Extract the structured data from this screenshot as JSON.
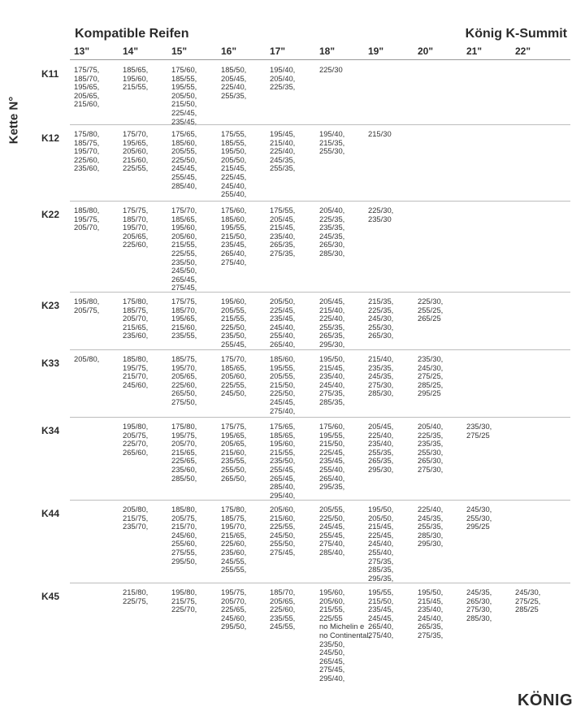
{
  "header": {
    "title_left": "Kompatible Reifen",
    "title_right": "König K-Summit",
    "vertical_label": "Kette N°"
  },
  "columns": [
    "13\"",
    "14\"",
    "15\"",
    "16\"",
    "17\"",
    "18\"",
    "19\"",
    "20\"",
    "21\"",
    "22\""
  ],
  "rows": [
    {
      "label": "K11",
      "cells": [
        "175/75,\n185/70,\n195/65,\n205/65,\n215/60,",
        "185/65,\n195/60,\n215/55,",
        "175/60,\n185/55,\n195/55,\n205/50,\n215/50,\n225/45,\n235/45,",
        "185/50,\n205/45,\n225/40,\n255/35,",
        "195/40,\n205/40,\n225/35,",
        "225/30",
        "",
        "",
        "",
        ""
      ]
    },
    {
      "label": "K12",
      "cells": [
        "175/80,\n185/75,\n195/70,\n225/60,\n235/60,",
        "175/70,\n195/65,\n205/60,\n215/60,\n225/55,",
        "175/65,\n185/60,\n205/55,\n225/50,\n245/45,\n255/45,\n285/40,",
        "175/55,\n185/55,\n195/50,\n205/50,\n215/45,\n225/45,\n245/40,\n255/40,",
        "195/45,\n215/40,\n225/40,\n245/35,\n255/35,",
        "195/40,\n215/35,\n255/30,",
        "215/30",
        "",
        "",
        ""
      ]
    },
    {
      "label": "K22",
      "cells": [
        "185/80,\n195/75,\n205/70,",
        "175/75,\n185/70,\n195/70,\n205/65,\n225/60,",
        "175/70,\n185/65,\n195/60,\n205/60,\n215/55,\n225/55,\n235/50,\n245/50,\n265/45,\n275/45,",
        "175/60,\n185/60,\n195/55,\n215/50,\n235/45,\n265/40,\n275/40,",
        "175/55,\n205/45,\n215/45,\n235/40,\n265/35,\n275/35,",
        "205/40,\n225/35,\n235/35,\n245/35,\n265/30,\n285/30,",
        "225/30,\n235/30",
        "",
        "",
        ""
      ]
    },
    {
      "label": "K23",
      "cells": [
        "195/80,\n205/75,",
        "175/80,\n185/75,\n205/70,\n215/65,\n235/60,",
        "175/75,\n185/70,\n195/65,\n215/60,\n235/55,",
        "195/60,\n205/55,\n215/55,\n225/50,\n235/50,\n255/45,",
        "205/50,\n225/45,\n235/45,\n245/40,\n255/40,\n265/40,",
        "205/45,\n215/40,\n225/40,\n255/35,\n265/35,\n295/30,",
        "215/35,\n225/35,\n245/30,\n255/30,\n265/30,",
        "225/30,\n255/25,\n265/25",
        "",
        ""
      ]
    },
    {
      "label": "K33",
      "cells": [
        "205/80,",
        "185/80,\n195/75,\n215/70,\n245/60,",
        "185/75,\n195/70,\n205/65,\n225/60,\n265/50,\n275/50,",
        "175/70,\n185/65,\n205/60,\n225/55,\n245/50,",
        "185/60,\n195/55,\n205/55,\n215/50,\n225/50,\n245/45,\n275/40,",
        "195/50,\n215/45,\n235/40,\n245/40,\n275/35,\n285/35,",
        "215/40,\n235/35,\n245/35,\n275/30,\n285/30,",
        "235/30,\n245/30,\n275/25,\n285/25,\n295/25",
        "",
        ""
      ]
    },
    {
      "label": "K34",
      "cells": [
        "",
        "195/80,\n205/75,\n225/70,\n265/60,",
        "175/80,\n195/75,\n205/70,\n215/65,\n225/65,\n235/60,\n285/50,",
        "175/75,\n195/65,\n205/65,\n215/60,\n235/55,\n255/50,\n265/50,",
        "175/65,\n185/65,\n195/60,\n215/55,\n235/50,\n255/45,\n265/45,\n285/40,\n295/40,",
        "175/60,\n195/55,\n215/50,\n225/45,\n235/45,\n255/40,\n265/40,\n295/35,",
        "205/45,\n225/40,\n235/40,\n255/35,\n265/35,\n295/30,",
        "205/40,\n225/35,\n235/35,\n255/30,\n265/30,\n275/30,",
        "235/30,\n275/25",
        ""
      ]
    },
    {
      "label": "K44",
      "cells": [
        "",
        "205/80,\n215/75,\n235/70,",
        "185/80,\n205/75,\n215/70,\n245/60,\n255/60,\n275/55,\n295/50,",
        "175/80,\n185/75,\n195/70,\n215/65,\n225/60,\n235/60,\n245/55,\n255/55,",
        "205/60,\n215/60,\n225/55,\n245/50,\n255/50,\n275/45,",
        "205/55,\n225/50,\n245/45,\n255/45,\n275/40,\n285/40,",
        "195/50,\n205/50,\n215/45,\n225/45,\n245/40,\n255/40,\n275/35,\n285/35,\n295/35,",
        "225/40,\n245/35,\n255/35,\n285/30,\n295/30,",
        "245/30,\n255/30,\n295/25",
        ""
      ]
    },
    {
      "label": "K45",
      "cells": [
        "",
        "215/80,\n225/75,",
        "195/80,\n215/75,\n225/70,",
        "195/75,\n205/70,\n225/65,\n245/60,\n295/50,",
        "185/70,\n205/65,\n225/60,\n235/55,\n245/55,",
        "195/60,\n205/60,\n215/55,\n225/55\nno Michelin e\nno Continental,\n235/50,\n245/50,\n265/45,\n275/45,\n295/40,",
        "195/55,\n215/50,\n235/45,\n245/45,\n265/40,\n275/40,",
        "195/50,\n215/45,\n235/40,\n245/40,\n265/35,\n275/35,",
        "245/35,\n265/30,\n275/30,\n285/30,",
        "245/30,\n275/25,\n285/25"
      ]
    }
  ],
  "footer": {
    "logo_text": "KÖNIG",
    "logo_color": "#2b2b2b"
  }
}
